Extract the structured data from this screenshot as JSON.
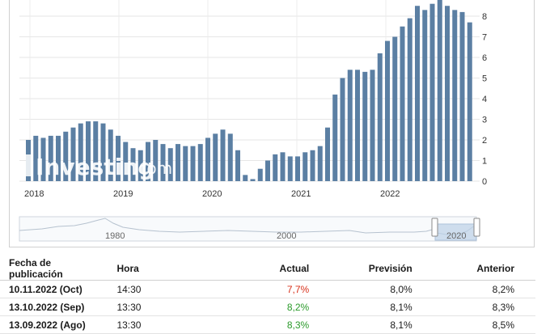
{
  "chart": {
    "y_ticks": [
      "0",
      "1",
      "2",
      "3",
      "4",
      "5",
      "6",
      "7",
      "8"
    ],
    "x_ticks": [
      "2018",
      "2019",
      "2020",
      "2021",
      "2022"
    ],
    "watermark": "Investing",
    "watermark_suffix": ".com",
    "bar_color": "#5b7fa3",
    "navigator_ticks": [
      "1980",
      "2000",
      "2020"
    ]
  },
  "chart_data": {
    "type": "bar",
    "ylim": [
      0,
      9
    ],
    "x": [
      "2017-11",
      "2017-12",
      "2018-01",
      "2018-02",
      "2018-03",
      "2018-04",
      "2018-05",
      "2018-06",
      "2018-07",
      "2018-08",
      "2018-09",
      "2018-10",
      "2018-11",
      "2018-12",
      "2019-01",
      "2019-02",
      "2019-03",
      "2019-04",
      "2019-05",
      "2019-06",
      "2019-07",
      "2019-08",
      "2019-09",
      "2019-10",
      "2019-11",
      "2019-12",
      "2020-01",
      "2020-02",
      "2020-03",
      "2020-04",
      "2020-05",
      "2020-06",
      "2020-07",
      "2020-08",
      "2020-09",
      "2020-10",
      "2020-11",
      "2020-12",
      "2021-01",
      "2021-02",
      "2021-03",
      "2021-04",
      "2021-05",
      "2021-06",
      "2021-07",
      "2021-08",
      "2021-09",
      "2021-10",
      "2021-11",
      "2021-12",
      "2022-01",
      "2022-02",
      "2022-03",
      "2022-04",
      "2022-05",
      "2022-06",
      "2022-07",
      "2022-08",
      "2022-09",
      "2022-10"
    ],
    "values": [
      2.0,
      2.2,
      2.1,
      2.2,
      2.2,
      2.4,
      2.6,
      2.8,
      2.9,
      2.9,
      2.8,
      2.5,
      2.2,
      1.9,
      1.6,
      1.5,
      1.9,
      2.0,
      1.8,
      1.6,
      1.8,
      1.7,
      1.7,
      1.8,
      2.1,
      2.3,
      2.5,
      2.3,
      1.5,
      0.3,
      0.1,
      0.6,
      1.0,
      1.3,
      1.4,
      1.2,
      1.2,
      1.4,
      1.5,
      1.7,
      2.6,
      4.2,
      5.0,
      5.4,
      5.4,
      5.3,
      5.4,
      6.2,
      6.8,
      7.0,
      7.5,
      7.9,
      8.5,
      8.3,
      8.6,
      9.1,
      8.5,
      8.3,
      8.2,
      7.7
    ]
  },
  "table": {
    "headers": {
      "date": "Fecha de publicación",
      "time": "Hora",
      "actual": "Actual",
      "forecast": "Previsión",
      "previous": "Anterior"
    },
    "rows": [
      {
        "date": "10.11.2022 (Oct)",
        "time": "14:30",
        "actual": "7,7%",
        "forecast": "8,0%",
        "previous": "8,2%",
        "actual_color": "red"
      },
      {
        "date": "13.10.2022 (Sep)",
        "time": "13:30",
        "actual": "8,2%",
        "forecast": "8,1%",
        "previous": "8,3%",
        "actual_color": "green"
      },
      {
        "date": "13.09.2022 (Ago)",
        "time": "13:30",
        "actual": "8,3%",
        "forecast": "8,1%",
        "previous": "8,5%",
        "actual_color": "green"
      }
    ]
  }
}
